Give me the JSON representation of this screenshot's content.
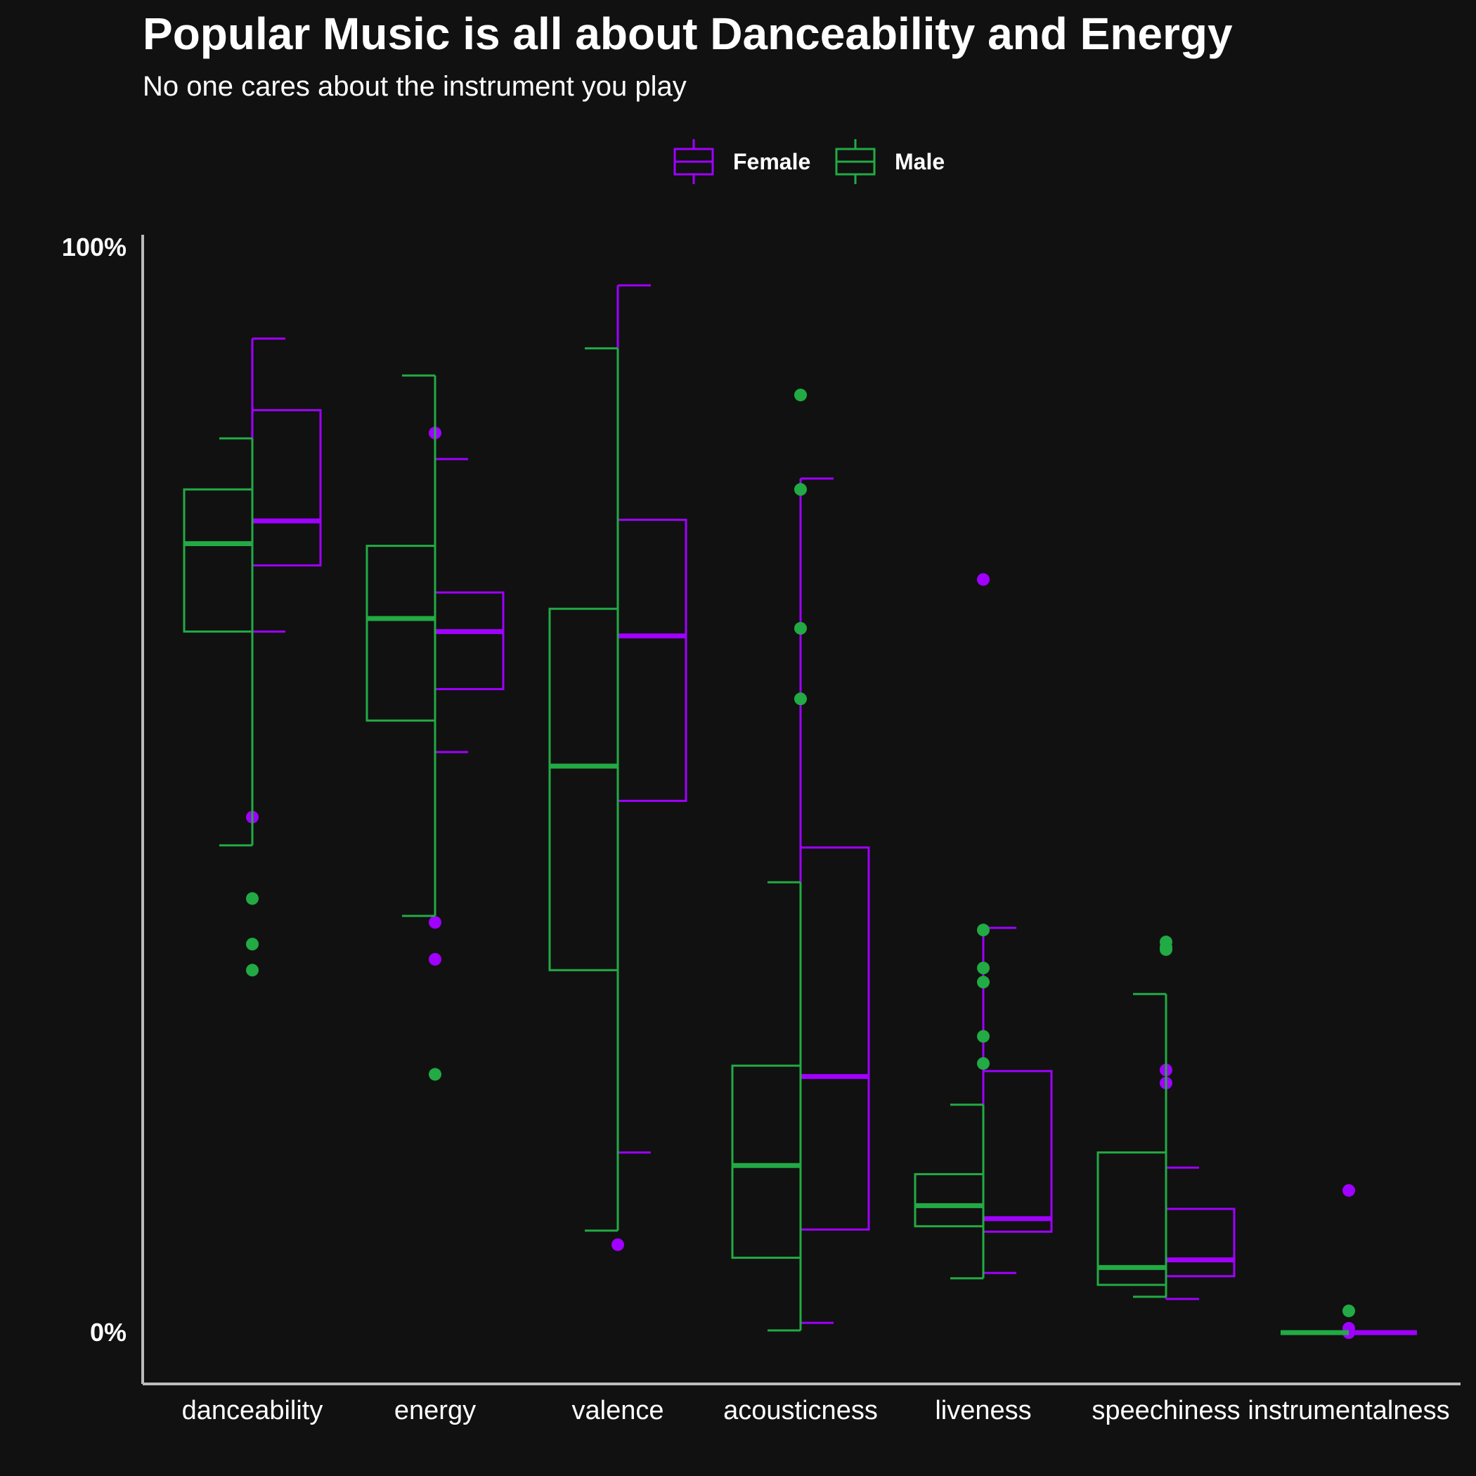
{
  "chart_data": {
    "type": "boxplot",
    "title": "Popular Music is all about Danceability and Energy",
    "subtitle": "No one cares about the instrument you play",
    "xlabel": "",
    "ylabel": "",
    "ylim": [
      0,
      1
    ],
    "y_tick_labels": [
      "0%",
      "100%"
    ],
    "y_tick_values": [
      0,
      1
    ],
    "grid": false,
    "legend_position": "top",
    "categories": [
      "danceability",
      "energy",
      "valence",
      "acousticness",
      "liveness",
      "speechiness",
      "instrumentalness"
    ],
    "series": [
      {
        "name": "Female",
        "color": "#a000ff",
        "boxes": [
          {
            "whisker_low": 0.646,
            "q1": 0.707,
            "median": 0.748,
            "q3": 0.85,
            "whisker_high": 0.916,
            "outliers": [
              0.475
            ]
          },
          {
            "whisker_low": 0.535,
            "q1": 0.593,
            "median": 0.646,
            "q3": 0.682,
            "whisker_high": 0.805,
            "outliers": [
              0.829,
              0.378,
              0.344
            ]
          },
          {
            "whisker_low": 0.166,
            "q1": 0.49,
            "median": 0.642,
            "q3": 0.749,
            "whisker_high": 0.965,
            "outliers": [
              0.081
            ]
          },
          {
            "whisker_low": 0.009,
            "q1": 0.095,
            "median": 0.236,
            "q3": 0.447,
            "whisker_high": 0.787,
            "outliers": []
          },
          {
            "whisker_low": 0.055,
            "q1": 0.093,
            "median": 0.105,
            "q3": 0.241,
            "whisker_high": 0.373,
            "outliers": [
              0.694
            ]
          },
          {
            "whisker_low": 0.031,
            "q1": 0.052,
            "median": 0.067,
            "q3": 0.114,
            "whisker_high": 0.152,
            "outliers": [
              0.242,
              0.23
            ]
          },
          {
            "whisker_low": 0.0,
            "q1": 0.0,
            "median": 0.0,
            "q3": 0.0,
            "whisker_high": 0.0,
            "outliers": [
              0.131,
              0.004,
              0.0
            ]
          }
        ]
      },
      {
        "name": "Male",
        "color": "#22aa44",
        "boxes": [
          {
            "whisker_low": 0.449,
            "q1": 0.646,
            "median": 0.727,
            "q3": 0.777,
            "whisker_high": 0.824,
            "outliers": [
              0.4,
              0.358,
              0.334
            ]
          },
          {
            "whisker_low": 0.384,
            "q1": 0.564,
            "median": 0.658,
            "q3": 0.725,
            "whisker_high": 0.882,
            "outliers": [
              0.238
            ]
          },
          {
            "whisker_low": 0.094,
            "q1": 0.334,
            "median": 0.522,
            "q3": 0.667,
            "whisker_high": 0.907,
            "outliers": []
          },
          {
            "whisker_low": 0.002,
            "q1": 0.069,
            "median": 0.154,
            "q3": 0.246,
            "whisker_high": 0.415,
            "outliers": [
              0.864,
              0.777,
              0.649,
              0.584
            ]
          },
          {
            "whisker_low": 0.05,
            "q1": 0.098,
            "median": 0.117,
            "q3": 0.146,
            "whisker_high": 0.21,
            "outliers": [
              0.371,
              0.336,
              0.323,
              0.273,
              0.248
            ]
          },
          {
            "whisker_low": 0.033,
            "q1": 0.044,
            "median": 0.06,
            "q3": 0.166,
            "whisker_high": 0.312,
            "outliers": [
              0.36,
              0.355,
              0.353
            ]
          },
          {
            "whisker_low": 0.0,
            "q1": 0.0,
            "median": 0.0,
            "q3": 0.0,
            "whisker_high": 0.0,
            "outliers": [
              0.02
            ]
          }
        ]
      }
    ]
  },
  "colors": {
    "background": "#111111",
    "axis": "#bbbbbb",
    "text": "#ffffff"
  }
}
